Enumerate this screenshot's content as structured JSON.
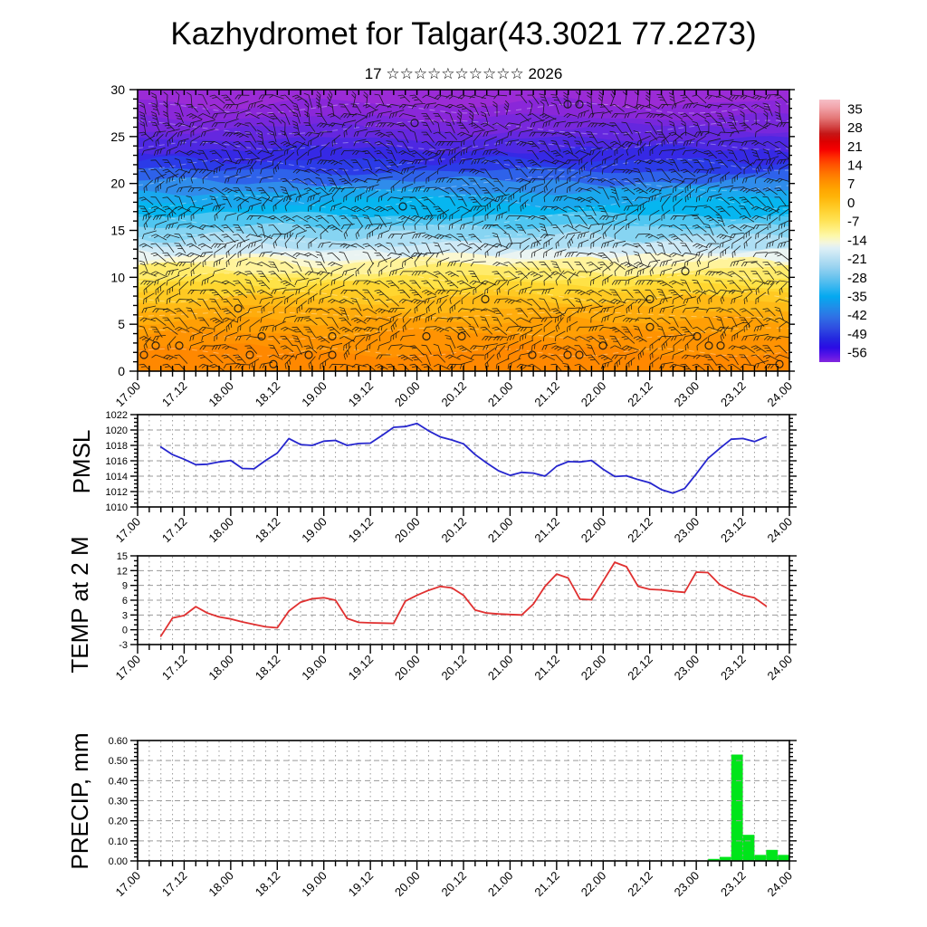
{
  "title": "Kazhydromet for Talgar(43.3021 77.2273)",
  "subtitle": "17 ☆☆☆☆☆☆☆☆☆☆ 2026",
  "panel_labels": {
    "pmsl": "PMSL",
    "temp": "TEMP at 2 M",
    "precip": "PRECIP, mm"
  },
  "x_axis": {
    "tick_labels": [
      "17.00",
      "17.12",
      "18.00",
      "18.12",
      "19.00",
      "19.12",
      "20.00",
      "20.12",
      "21.00",
      "21.12",
      "22.00",
      "22.12",
      "23.00",
      "23.12",
      "24.00"
    ],
    "major_step_hours": 12,
    "minor_step_hours": 3,
    "total_hours": 168
  },
  "colorbar": {
    "tick_labels": [
      "35",
      "28",
      "21",
      "14",
      "7",
      "0",
      "-7",
      "-14",
      "-21",
      "-28",
      "-35",
      "-42",
      "-49",
      "-56"
    ],
    "tick_values": [
      35,
      28,
      21,
      14,
      7,
      0,
      -7,
      -14,
      -21,
      -28,
      -35,
      -42,
      -49,
      -56
    ],
    "value_range": [
      38.5,
      -59.5
    ],
    "stops": [
      [
        0,
        "#F6BFC7"
      ],
      [
        0.03,
        "#F2A4AB"
      ],
      [
        0.07,
        "#E47878"
      ],
      [
        0.1,
        "#D44A4A"
      ],
      [
        0.13,
        "#C51616"
      ],
      [
        0.16,
        "#DD0000"
      ],
      [
        0.19,
        "#F60000"
      ],
      [
        0.22,
        "#FF2E00"
      ],
      [
        0.25,
        "#FF5400"
      ],
      [
        0.28,
        "#FF7400"
      ],
      [
        0.31,
        "#FF8E00"
      ],
      [
        0.34,
        "#FFA400"
      ],
      [
        0.37,
        "#FFB408"
      ],
      [
        0.4,
        "#FFC51E"
      ],
      [
        0.43,
        "#FFD538"
      ],
      [
        0.46,
        "#FFE254"
      ],
      [
        0.49,
        "#FFEE7C"
      ],
      [
        0.52,
        "#FDF8AC"
      ],
      [
        0.545,
        "#F4F6DC"
      ],
      [
        0.565,
        "#DFF0F6"
      ],
      [
        0.6,
        "#BEE2F3"
      ],
      [
        0.64,
        "#97D2F0"
      ],
      [
        0.68,
        "#66C2EE"
      ],
      [
        0.72,
        "#2FB4F0"
      ],
      [
        0.75,
        "#04A9F0"
      ],
      [
        0.79,
        "#1F8EE9"
      ],
      [
        0.83,
        "#2F6FE5"
      ],
      [
        0.87,
        "#2F4DE1"
      ],
      [
        0.91,
        "#2428DF"
      ],
      [
        0.945,
        "#2B0BE5"
      ],
      [
        0.975,
        "#5A14E6"
      ],
      [
        1,
        "#8327DF"
      ]
    ]
  },
  "chart_data": {
    "cross_section": {
      "type": "heatmap",
      "description": "time-height cross-section 17.00-24.00, temperature color shading with wind barbs",
      "ylim_km": [
        0,
        30
      ],
      "yticks": [
        0,
        5,
        10,
        15,
        20,
        25,
        30
      ],
      "bands": [
        {
          "top": 30,
          "bottom": 28.5,
          "color": "#9B2BD6"
        },
        {
          "top": 28.5,
          "bottom": 27,
          "color": "#8A27D9"
        },
        {
          "top": 27,
          "bottom": 25.8,
          "color": "#7827DC"
        },
        {
          "top": 25.8,
          "bottom": 24.7,
          "color": "#6527DF"
        },
        {
          "top": 24.7,
          "bottom": 23.6,
          "color": "#4E28E2"
        },
        {
          "top": 23.6,
          "bottom": 22.4,
          "color": "#3629E5"
        },
        {
          "top": 22.4,
          "bottom": 21.3,
          "color": "#2B3BE8"
        },
        {
          "top": 21.3,
          "bottom": 20.2,
          "color": "#2E62EA"
        },
        {
          "top": 20.2,
          "bottom": 19.2,
          "color": "#2F8CEB"
        },
        {
          "top": 19.2,
          "bottom": 18,
          "color": "#19A8EE"
        },
        {
          "top": 18,
          "bottom": 16.6,
          "color": "#06B6F0"
        },
        {
          "top": 16.6,
          "bottom": 15.4,
          "color": "#4FC6F1"
        },
        {
          "top": 15.4,
          "bottom": 14.3,
          "color": "#86D4F2"
        },
        {
          "top": 14.3,
          "bottom": 13.3,
          "color": "#AEDFF4"
        },
        {
          "top": 13.3,
          "bottom": 12.5,
          "color": "#CFEAF6"
        },
        {
          "top": 12.5,
          "bottom": 12.1,
          "color": "#EAF4F2"
        },
        {
          "top": 12.1,
          "bottom": 11.6,
          "color": "#FBF8D0"
        },
        {
          "top": 11.6,
          "bottom": 10.8,
          "color": "#FFF39B"
        },
        {
          "top": 10.8,
          "bottom": 10,
          "color": "#FFEB6B"
        },
        {
          "top": 10,
          "bottom": 9.2,
          "color": "#FFE246"
        },
        {
          "top": 9.2,
          "bottom": 8.4,
          "color": "#FFD630"
        },
        {
          "top": 8.4,
          "bottom": 7.6,
          "color": "#FFC922"
        },
        {
          "top": 7.6,
          "bottom": 6.6,
          "color": "#FFBA16"
        },
        {
          "top": 6.6,
          "bottom": 5.4,
          "color": "#FFAC0C"
        },
        {
          "top": 5.4,
          "bottom": 4,
          "color": "#FF9F05"
        },
        {
          "top": 4,
          "bottom": 2.2,
          "color": "#FF9302"
        },
        {
          "top": 2.2,
          "bottom": 0,
          "color": "#FF8800"
        }
      ],
      "wind_barbs": {
        "cols": 55,
        "rows": 30,
        "color": "#141414"
      },
      "contour_style": {
        "color": "#FFFFFF",
        "dashed": true
      }
    },
    "pmsl": {
      "type": "line",
      "color": "#2626CE",
      "ylim": [
        1010,
        1022
      ],
      "yticks": [
        1010,
        1012,
        1014,
        1016,
        1018,
        1020,
        1022
      ],
      "y_minor_step": 0.5,
      "start_hour": 6,
      "step_hours": 3,
      "values": [
        1017.8,
        1016.8,
        1016.2,
        1015.5,
        1015.55,
        1015.85,
        1016.05,
        1015.0,
        1014.95,
        1016.05,
        1017.0,
        1018.9,
        1018.1,
        1018.0,
        1018.55,
        1018.65,
        1018.0,
        1018.25,
        1018.3,
        1019.3,
        1020.35,
        1020.45,
        1020.85,
        1019.9,
        1019.1,
        1018.7,
        1018.2,
        1016.8,
        1015.7,
        1014.7,
        1014.1,
        1014.5,
        1014.4,
        1014.0,
        1015.3,
        1015.9,
        1015.85,
        1016.05,
        1014.9,
        1013.95,
        1014.05,
        1013.55,
        1013.15,
        1012.25,
        1011.8,
        1012.4,
        1014.3,
        1016.3,
        1017.6,
        1018.8,
        1018.9,
        1018.5,
        1019.1
      ]
    },
    "temp": {
      "type": "line",
      "color": "#E03030",
      "ylim": [
        -3,
        15
      ],
      "yticks": [
        -3,
        0,
        3,
        6,
        9,
        12,
        15
      ],
      "y_minor_step": 1,
      "start_hour": 6,
      "step_hours": 3,
      "values": [
        -1.3,
        2.4,
        2.9,
        4.7,
        3.4,
        2.6,
        2.2,
        1.6,
        1.1,
        0.6,
        0.4,
        3.8,
        5.6,
        6.3,
        6.5,
        6.0,
        2.3,
        1.5,
        1.4,
        1.35,
        1.3,
        5.8,
        7.0,
        8.0,
        8.8,
        8.5,
        7.0,
        4.0,
        3.4,
        3.2,
        3.1,
        3.0,
        5.2,
        8.8,
        11.3,
        10.5,
        6.2,
        6.1,
        9.9,
        13.7,
        12.8,
        8.8,
        8.2,
        8.1,
        7.8,
        7.6,
        11.7,
        11.6,
        9.2,
        8.0,
        7.0,
        6.5,
        4.8
      ]
    },
    "precip": {
      "type": "bar",
      "color": "#00E51A",
      "ylim": [
        0,
        0.6
      ],
      "yticks": [
        0,
        0.1,
        0.2,
        0.3,
        0.4,
        0.5,
        0.6
      ],
      "ytick_labels": [
        "0.00",
        "0.10",
        "0.20",
        "0.30",
        "0.40",
        "0.50",
        "0.60"
      ],
      "y_minor_step": 0.02,
      "bar_width_hours": 3,
      "bars": [
        {
          "start_hour": 147,
          "value": 0.01
        },
        {
          "start_hour": 150,
          "value": 0.02
        },
        {
          "start_hour": 153,
          "value": 0.53
        },
        {
          "start_hour": 156,
          "value": 0.13
        },
        {
          "start_hour": 159,
          "value": 0.03
        },
        {
          "start_hour": 162,
          "value": 0.055
        },
        {
          "start_hour": 165,
          "value": 0.03
        }
      ]
    }
  }
}
